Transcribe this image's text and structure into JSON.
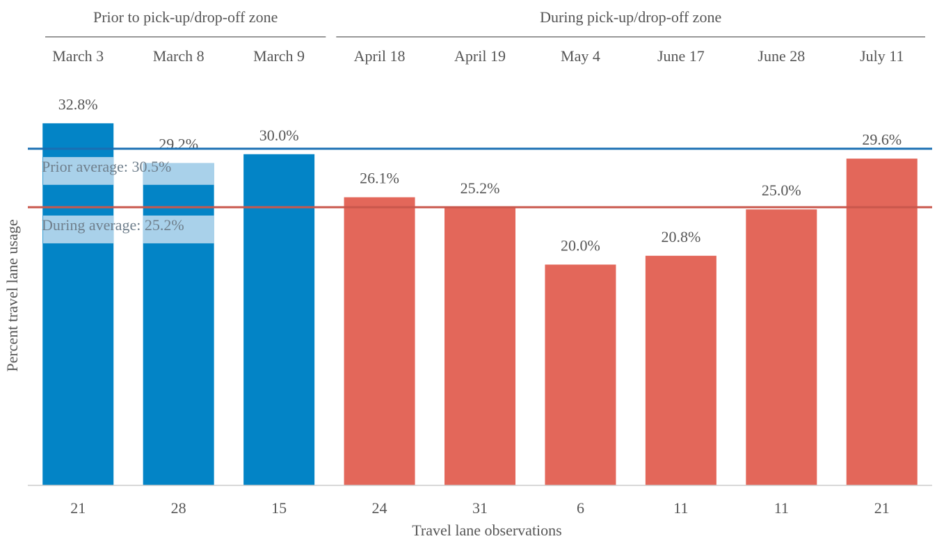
{
  "chart_data": {
    "type": "bar",
    "categories": [
      "March 3",
      "March 8",
      "March 9",
      "April 18",
      "April 19",
      "May 4",
      "June 17",
      "June 28",
      "July 11"
    ],
    "series": [
      {
        "name": "Prior to pick-up/drop-off zone",
        "color": "#0384c6",
        "values": [
          32.8,
          29.2,
          30.0,
          null,
          null,
          null,
          null,
          null,
          null
        ],
        "value_labels": [
          "32.8%",
          "29.2%",
          "30.0%",
          null,
          null,
          null,
          null,
          null,
          null
        ]
      },
      {
        "name": "During pick-up/drop-off zone",
        "color": "#e3675a",
        "values": [
          null,
          null,
          null,
          26.1,
          25.2,
          20.0,
          20.8,
          25.0,
          29.6
        ],
        "value_labels": [
          null,
          null,
          null,
          "26.1%",
          "25.2%",
          "20.0%",
          "20.8%",
          "25.0%",
          "29.6%"
        ]
      }
    ],
    "reference_lines": [
      {
        "label": "Prior average: 30.5%",
        "value": 30.5,
        "color": "#1a6fb3"
      },
      {
        "label": "During average: 25.2%",
        "value": 25.2,
        "color": "#c9574c"
      }
    ],
    "observations": [
      21,
      28,
      15,
      24,
      31,
      6,
      11,
      11,
      21
    ],
    "x_label": "Travel lane observations",
    "y_label": "Percent travel lane usage",
    "ylim": [
      0,
      40
    ]
  }
}
